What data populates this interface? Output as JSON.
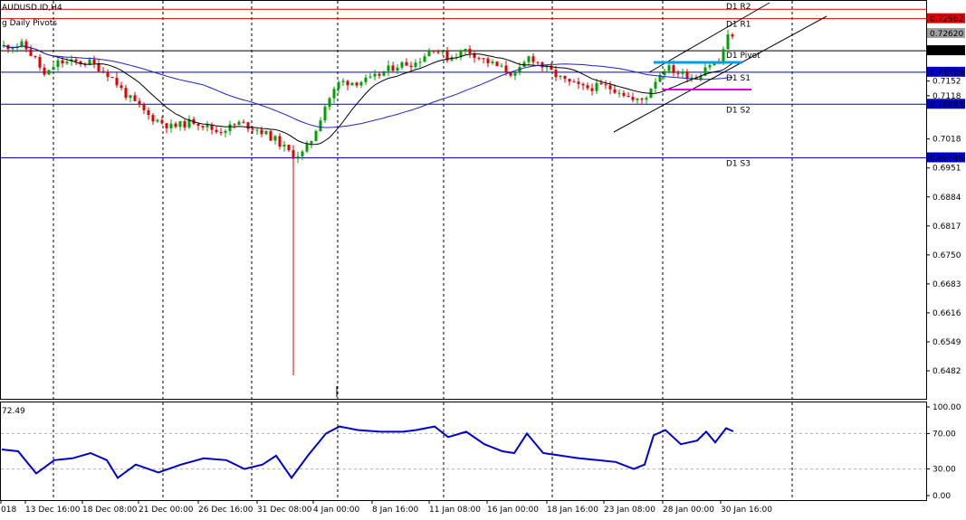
{
  "header": {
    "title": "AUDUSD.ID,H4",
    "indicator_name": "g Daily Pivots"
  },
  "oscillator": {
    "current_value": "72.49",
    "levels": [
      "100.00",
      "70.00",
      "30.00",
      "0.00"
    ]
  },
  "chart_data": [
    {
      "type": "candlestick",
      "symbol": "AUDUSD.ID",
      "timeframe": "H4",
      "ylim": [
        0.6455,
        0.731
      ],
      "y_ticks": [
        "0.7262",
        "0.7222",
        "0.7152",
        "0.7118",
        "0.7018",
        "0.6951",
        "0.6884",
        "0.6817",
        "0.6750",
        "0.6683",
        "0.6616",
        "0.6549",
        "0.6482"
      ],
      "x_ticks": [
        "018",
        "13 Dec 16:00",
        "18 Dec 08:00",
        "21 Dec 00:00",
        "26 Dec 16:00",
        "31 Dec 08:00",
        "4 Jan 00:00",
        "8 Jan 16:00",
        "11 Jan 08:00",
        "16 Jan 00:00",
        "18 Jan 16:00",
        "23 Jan 08:00",
        "28 Jan 00:00",
        "30 Jan 16:00"
      ],
      "price_labels": [
        {
          "text": "0.72962",
          "value": 0.72962,
          "color": "#e00000"
        },
        {
          "text": "0.72620",
          "value": 0.7262,
          "color": "#a0a0a0"
        },
        {
          "text": "0.72221",
          "value": 0.72221,
          "color": "#000000"
        },
        {
          "text": "0.71724",
          "value": 0.71724,
          "color": "#0000cc"
        },
        {
          "text": "0.70983",
          "value": 0.70983,
          "color": "#0000cc"
        },
        {
          "text": "0.69745",
          "value": 0.69745,
          "color": "#0000cc"
        }
      ],
      "pivot_lines": [
        {
          "label": "D1 R2",
          "value": 0.7318,
          "color": "#e00000"
        },
        {
          "label": "D1 R1",
          "value": 0.72962,
          "color": "#e00000"
        },
        {
          "label": "D1 Pivot",
          "value": 0.72221,
          "color": "#000000"
        },
        {
          "label": "D1 S1",
          "value": 0.71724,
          "color": "#0000cc"
        },
        {
          "label": "D1 S2",
          "value": 0.70983,
          "color": "#0000cc"
        },
        {
          "label": "D1 S3",
          "value": 0.69745,
          "color": "#0000cc"
        }
      ],
      "colors": {
        "bull": "#00a000",
        "bear": "#e00000",
        "ma_fast": "#000000",
        "ma_slow": "#2020c0",
        "grid": "#000000"
      }
    },
    {
      "type": "line",
      "name": "oscillator",
      "ylim": [
        0,
        100
      ],
      "levels": [
        70,
        30
      ],
      "color": "#0000cc",
      "last_value": 72.49
    }
  ]
}
